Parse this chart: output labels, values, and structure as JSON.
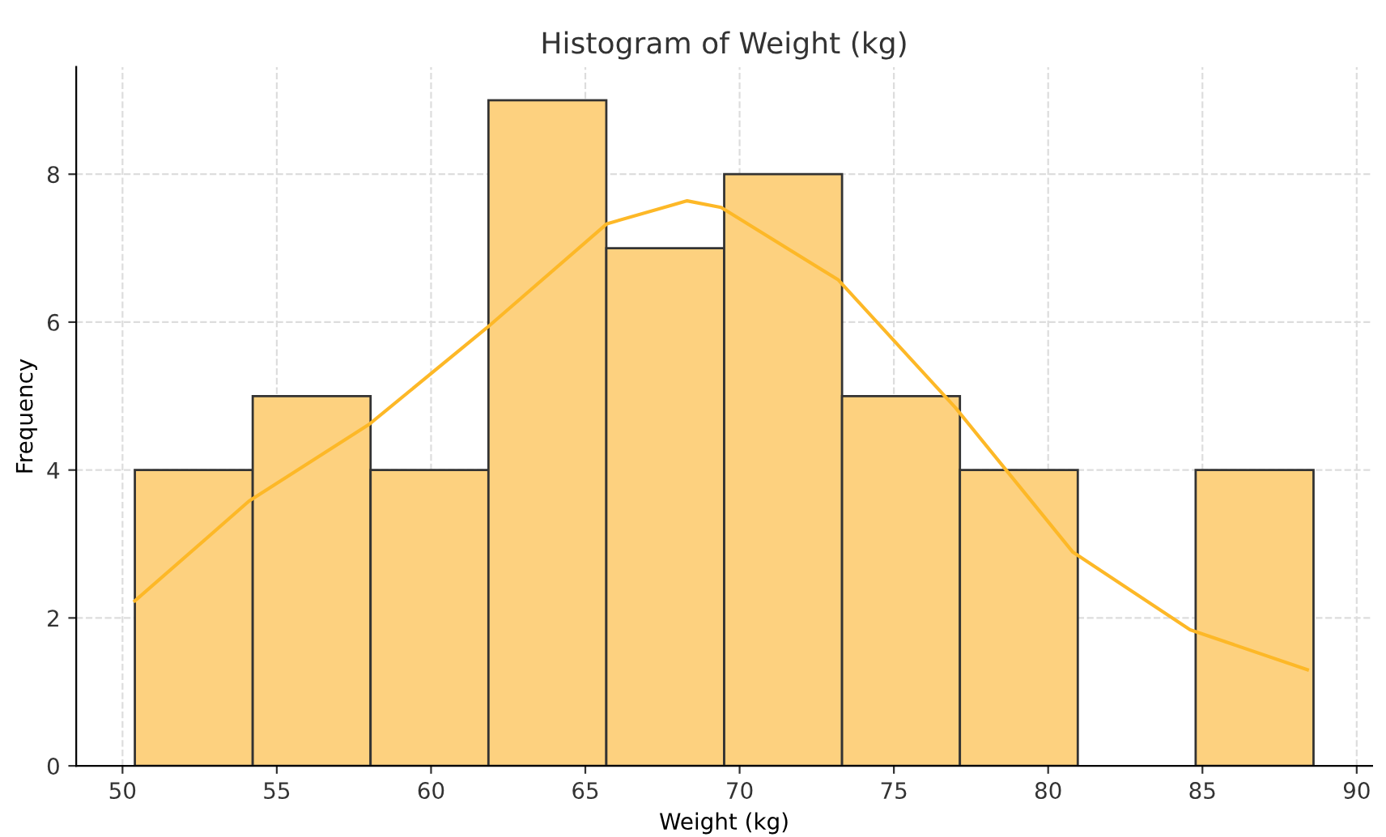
{
  "chart_data": {
    "type": "histogram",
    "title": "Histogram of Weight (kg)",
    "xlabel": "Weight (kg)",
    "ylabel": "Frequency",
    "bins": [
      50.4,
      54.22,
      58.04,
      61.86,
      65.68,
      69.5,
      73.32,
      77.14,
      80.96,
      84.78,
      88.6
    ],
    "values": [
      4,
      5,
      4,
      9,
      7,
      8,
      5,
      4,
      0,
      4
    ],
    "color": "#fdd17f",
    "series": [
      {
        "type": "line",
        "color": "#fdb827",
        "x": [
          50.4,
          54.1,
          58.0,
          61.8,
          65.7,
          68.3,
          69.4,
          73.2,
          77.0,
          80.8,
          84.6,
          88.4
        ],
        "values": [
          2.23,
          3.58,
          4.62,
          5.92,
          7.33,
          7.64,
          7.55,
          6.57,
          4.84,
          2.89,
          1.84,
          1.3
        ]
      }
    ],
    "xlim": [
      48.5,
      90.5
    ],
    "xticks": [
      50,
      55,
      60,
      65,
      70,
      75,
      80,
      85,
      90
    ],
    "ylim": [
      0,
      9.45
    ],
    "yticks": [
      0,
      2,
      4,
      6,
      8
    ],
    "grid": true
  }
}
